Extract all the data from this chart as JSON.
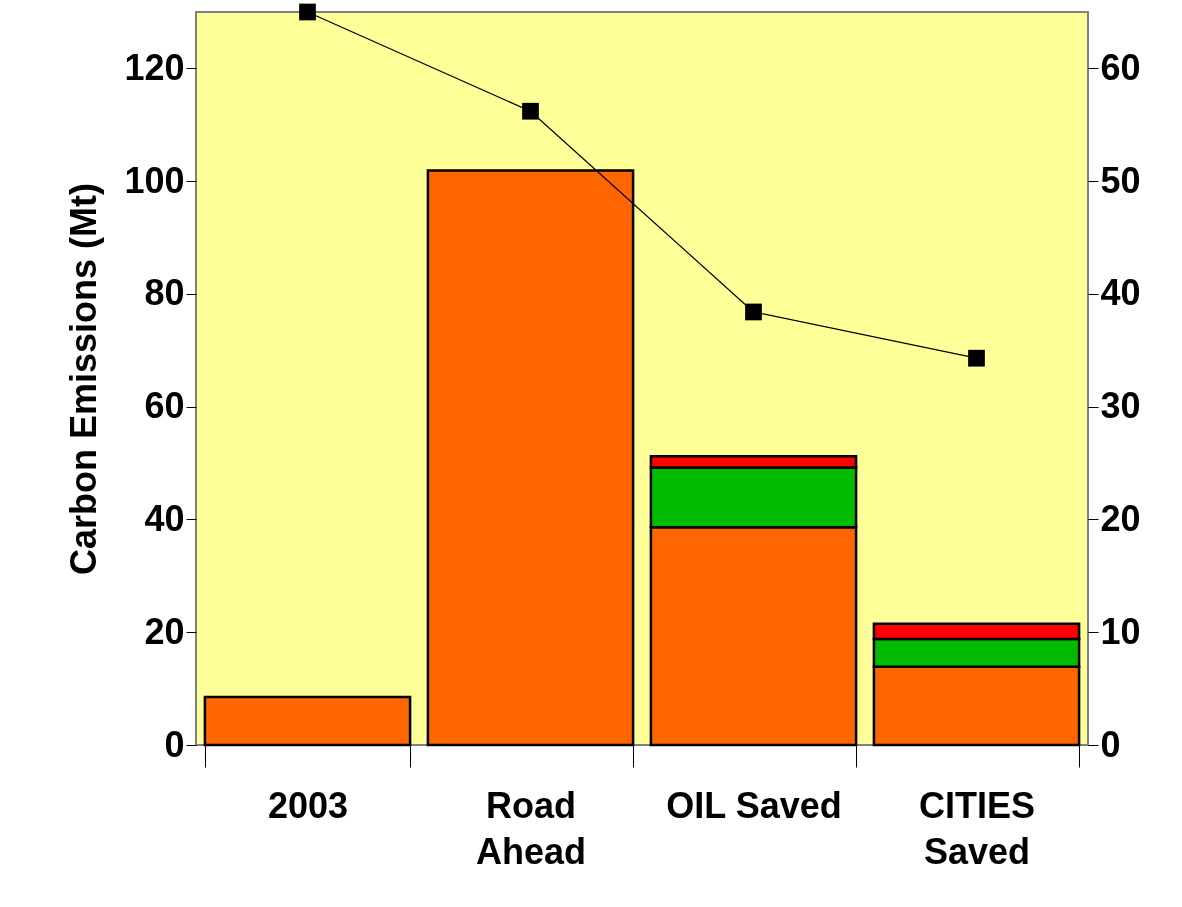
{
  "chart_data": {
    "type": "bar",
    "stacked": true,
    "ylabel": "Carbon Emissions (Mt)",
    "categories": [
      "2003",
      "Road\nAhead",
      "OIL Saved",
      "CITIES\nSaved"
    ],
    "series": [
      {
        "color": "#ff6600",
        "values": [
          8.5,
          101.9,
          38.6,
          13.9
        ]
      },
      {
        "color": "#00bb00",
        "values": [
          null,
          null,
          10.6,
          4.9
        ]
      },
      {
        "color": "#ff0000",
        "values": [
          null,
          null,
          2.0,
          2.7
        ]
      },
      {
        "type": "line",
        "axis": "y2",
        "color": "#000000",
        "values": [
          65.0,
          56.2,
          38.4,
          34.3
        ]
      }
    ],
    "ylim": [
      0,
      130
    ],
    "yticks": [
      0,
      20,
      40,
      60,
      80,
      100,
      120
    ],
    "y2lim": [
      0,
      65
    ],
    "y2ticks": [
      0,
      10,
      20,
      30,
      40,
      50,
      60
    ],
    "marker": "square",
    "line_style": "solid",
    "grid": false
  }
}
